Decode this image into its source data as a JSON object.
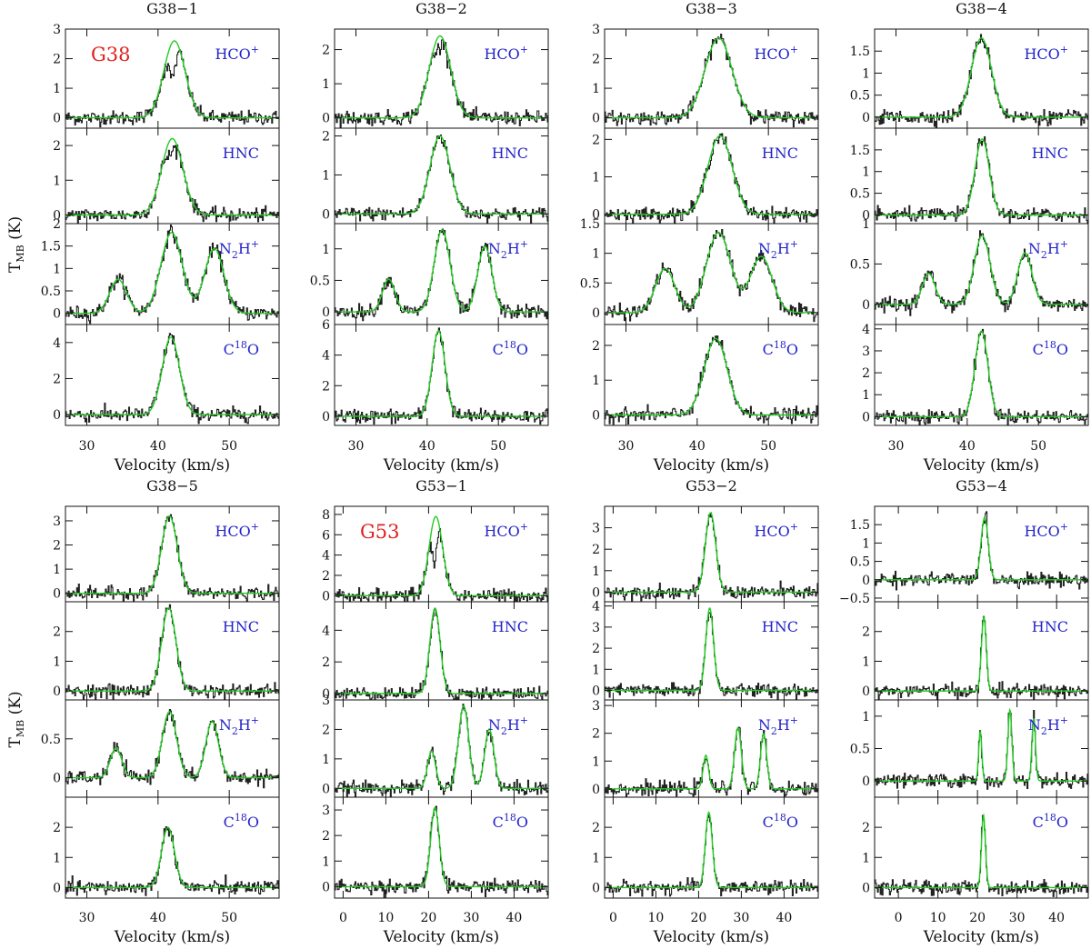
{
  "figure": {
    "y_axis_label": {
      "main": "T",
      "sub": "MB",
      "rest": " (K)"
    },
    "x_axis_label": "Velocity (km/s)",
    "molecules": [
      {
        "id": "HCO+",
        "main": "HCO",
        "sup": "+"
      },
      {
        "id": "HNC",
        "main": "HNC"
      },
      {
        "id": "N2H+",
        "main": "N",
        "sub": "2",
        "main2": "H",
        "sup": "+"
      },
      {
        "id": "C18O",
        "main": "C",
        "sup": "18",
        "main2": "O"
      }
    ],
    "colors": {
      "observed": "#222222",
      "fit": "#22cc22",
      "molecule_label": "#2323c8",
      "region_label": "#e02020"
    }
  },
  "chart_data": [
    {
      "type": "line",
      "title": "G38−1",
      "region_label": "G38",
      "xlim": [
        27,
        57
      ],
      "xticks": [
        "30",
        "40",
        "50"
      ],
      "stacks": [
        {
          "molecule": "HCO+",
          "ylim": [
            -0.35,
            3.0
          ],
          "yticks": [
            "0",
            "1",
            "2",
            "3"
          ],
          "peak": 2.6,
          "center": 42.3,
          "width": 1.5,
          "dip": 0.45,
          "offset": 0
        },
        {
          "molecule": "HNC",
          "ylim": [
            -0.25,
            2.5
          ],
          "yticks": [
            "0",
            "1",
            "2"
          ],
          "peak": 2.2,
          "center": 42.0,
          "width": 1.5,
          "dip": 0.2,
          "offset": 0
        },
        {
          "molecule": "N2H+",
          "ylim": [
            -0.25,
            2.0
          ],
          "yticks": [
            "0",
            "0.5",
            "1",
            "1.5",
            "2"
          ],
          "peak": 1.8,
          "center": 41.9,
          "width": 1.5,
          "hfs": [
            0.42,
            1.0,
            0.8
          ],
          "offset": 0
        },
        {
          "molecule": "C18O",
          "ylim": [
            -0.6,
            5.0
          ],
          "yticks": [
            "0",
            "2",
            "4"
          ],
          "peak": 4.3,
          "center": 41.8,
          "width": 1.2,
          "offset": 0
        }
      ]
    },
    {
      "type": "line",
      "title": "G38−2",
      "xlim": [
        27,
        57
      ],
      "xticks": [
        "30",
        "40",
        "50"
      ],
      "stacks": [
        {
          "molecule": "HCO+",
          "ylim": [
            -0.3,
            2.6
          ],
          "yticks": [
            "0",
            "1",
            "2"
          ],
          "peak": 2.4,
          "center": 41.8,
          "width": 1.5,
          "dip": 0.15,
          "offset": 0
        },
        {
          "molecule": "HNC",
          "ylim": [
            -0.25,
            2.2
          ],
          "yticks": [
            "0",
            "1",
            "2"
          ],
          "peak": 2.0,
          "center": 41.8,
          "width": 1.4,
          "offset": 0
        },
        {
          "molecule": "N2H+",
          "ylim": [
            -0.2,
            1.4
          ],
          "yticks": [
            "0",
            "0.5",
            "1"
          ],
          "peak": 1.3,
          "center": 42.1,
          "width": 1.1,
          "hfs": [
            0.4,
            1.0,
            0.8
          ],
          "offset": 0
        },
        {
          "molecule": "C18O",
          "ylim": [
            -0.6,
            6.0
          ],
          "yticks": [
            "0",
            "2",
            "4",
            "6"
          ],
          "peak": 5.6,
          "center": 41.6,
          "width": 0.9,
          "offset": 0
        }
      ]
    },
    {
      "type": "line",
      "title": "G38−3",
      "xlim": [
        27,
        57
      ],
      "xticks": [
        "30",
        "40",
        "50"
      ],
      "stacks": [
        {
          "molecule": "HCO+",
          "ylim": [
            -0.35,
            3.0
          ],
          "yticks": [
            "0",
            "1",
            "2",
            "3"
          ],
          "peak": 2.7,
          "center": 43.0,
          "width": 1.9,
          "offset": 0
        },
        {
          "molecule": "HNC",
          "ylim": [
            -0.25,
            2.3
          ],
          "yticks": [
            "0",
            "1",
            "2"
          ],
          "peak": 2.1,
          "center": 43.2,
          "width": 1.7,
          "offset": 0
        },
        {
          "molecule": "N2H+",
          "ylim": [
            -0.2,
            1.5
          ],
          "yticks": [
            "0",
            "0.5",
            "1",
            "1.5"
          ],
          "peak": 1.35,
          "center": 43.0,
          "width": 1.7,
          "hfs": [
            0.55,
            1.0,
            0.7
          ],
          "offset": 0
        },
        {
          "molecule": "C18O",
          "ylim": [
            -0.3,
            2.6
          ],
          "yticks": [
            "0",
            "1",
            "2"
          ],
          "peak": 2.2,
          "center": 42.6,
          "width": 1.6,
          "offset": 0
        }
      ]
    },
    {
      "type": "line",
      "title": "G38−4",
      "xlim": [
        27,
        57
      ],
      "xticks": [
        "30",
        "40",
        "50"
      ],
      "stacks": [
        {
          "molecule": "HCO+",
          "ylim": [
            -0.25,
            2.0
          ],
          "yticks": [
            "0",
            "0.5",
            "1",
            "1.5"
          ],
          "peak": 1.8,
          "center": 42.0,
          "width": 1.4,
          "offset": 0
        },
        {
          "molecule": "HNC",
          "ylim": [
            -0.2,
            2.0
          ],
          "yticks": [
            "0",
            "0.5",
            "1",
            "1.5"
          ],
          "peak": 1.75,
          "center": 42.1,
          "width": 1.0,
          "offset": 0
        },
        {
          "molecule": "N2H+",
          "ylim": [
            -0.25,
            1.0
          ],
          "yticks": [
            "0",
            "0.5",
            "1"
          ],
          "peak": 0.85,
          "center": 42.1,
          "width": 1.1,
          "hfs": [
            0.45,
            1.0,
            0.75
          ],
          "offset": 0
        },
        {
          "molecule": "C18O",
          "ylim": [
            -0.4,
            4.2
          ],
          "yticks": [
            "0",
            "1",
            "2",
            "3",
            "4"
          ],
          "peak": 3.9,
          "center": 42.0,
          "width": 0.9,
          "offset": 0
        }
      ]
    },
    {
      "type": "line",
      "title": "G38−5",
      "xlim": [
        27,
        57
      ],
      "xticks": [
        "30",
        "40",
        "50"
      ],
      "stacks": [
        {
          "molecule": "HCO+",
          "ylim": [
            -0.35,
            3.6
          ],
          "yticks": [
            "0",
            "1",
            "2",
            "3"
          ],
          "peak": 3.2,
          "center": 41.6,
          "width": 1.1,
          "offset": 0
        },
        {
          "molecule": "HNC",
          "ylim": [
            -0.3,
            3.0
          ],
          "yticks": [
            "0",
            "1",
            "2"
          ],
          "peak": 2.8,
          "center": 41.5,
          "width": 1.0,
          "offset": 0
        },
        {
          "molecule": "N2H+",
          "ylim": [
            -0.25,
            1.0
          ],
          "yticks": [
            "0",
            "0.5"
          ],
          "peak": 0.85,
          "center": 41.6,
          "width": 1.0,
          "hfs": [
            0.45,
            1.0,
            0.85
          ],
          "offset": 0
        },
        {
          "molecule": "C18O",
          "ylim": [
            -0.35,
            3.0
          ],
          "yticks": [
            "0",
            "1",
            "2"
          ],
          "peak": 2.0,
          "center": 41.4,
          "width": 0.9,
          "offset": 0
        }
      ]
    },
    {
      "type": "line",
      "title": "G53−1",
      "region_label": "G53",
      "xlim": [
        -2,
        48
      ],
      "xticks": [
        "0",
        "10",
        "20",
        "30",
        "40"
      ],
      "stacks": [
        {
          "molecule": "HCO+",
          "ylim": [
            -0.6,
            8.8
          ],
          "yticks": [
            "0",
            "2",
            "4",
            "6",
            "8"
          ],
          "peak": 7.8,
          "center": 21.7,
          "width": 1.6,
          "dip": 0.6,
          "offset": 0
        },
        {
          "molecule": "HNC",
          "ylim": [
            -0.4,
            5.8
          ],
          "yticks": [
            "0",
            "2",
            "4"
          ],
          "peak": 5.4,
          "center": 21.5,
          "width": 1.2,
          "offset": 0
        },
        {
          "molecule": "N2H+",
          "ylim": [
            -0.3,
            3.0
          ],
          "yticks": [
            "0",
            "1",
            "2",
            "3"
          ],
          "peak": 2.8,
          "center": 21.6,
          "width": 1.2,
          "hfs": [
            0.45,
            1.0,
            0.72
          ],
          "offset": 6.6
        },
        {
          "molecule": "C18O",
          "ylim": [
            -0.45,
            3.5
          ],
          "yticks": [
            "0",
            "1",
            "2",
            "3"
          ],
          "peak": 3.1,
          "center": 21.5,
          "width": 1.0,
          "offset": 0
        }
      ]
    },
    {
      "type": "line",
      "title": "G53−2",
      "xlim": [
        -2,
        48
      ],
      "xticks": [
        "0",
        "10",
        "20",
        "30",
        "40"
      ],
      "stacks": [
        {
          "molecule": "HCO+",
          "ylim": [
            -0.45,
            4.0
          ],
          "yticks": [
            "0",
            "1",
            "2",
            "3"
          ],
          "peak": 3.7,
          "center": 22.8,
          "width": 1.2,
          "offset": 0
        },
        {
          "molecule": "HNC",
          "ylim": [
            -0.45,
            4.2
          ],
          "yticks": [
            "0",
            "1",
            "2",
            "3",
            "4"
          ],
          "peak": 3.9,
          "center": 22.6,
          "width": 0.9,
          "offset": 0
        },
        {
          "molecule": "N2H+",
          "ylim": [
            -0.3,
            3.2
          ],
          "yticks": [
            "0",
            "1",
            "2",
            "3"
          ],
          "peak": 2.2,
          "center": 22.6,
          "width": 0.8,
          "hfs": [
            0.55,
            1.0,
            0.9
          ],
          "offset": 6.6
        },
        {
          "molecule": "C18O",
          "ylim": [
            -0.35,
            3.0
          ],
          "yticks": [
            "0",
            "1",
            "2"
          ],
          "peak": 2.5,
          "center": 22.4,
          "width": 0.8,
          "offset": 0
        }
      ]
    },
    {
      "type": "line",
      "title": "G53−4",
      "xlim": [
        -6,
        48
      ],
      "xticks": [
        "0",
        "10",
        "20",
        "30",
        "40"
      ],
      "stacks": [
        {
          "molecule": "HCO+",
          "ylim": [
            -0.6,
            2.0
          ],
          "yticks": [
            "−0.5",
            "0",
            "0.5",
            "1",
            "1.5"
          ],
          "peak": 1.7,
          "center": 21.8,
          "width": 0.9,
          "offset": 0
        },
        {
          "molecule": "HNC",
          "ylim": [
            -0.3,
            3.0
          ],
          "yticks": [
            "0",
            "1",
            "2"
          ],
          "peak": 2.5,
          "center": 21.6,
          "width": 0.6,
          "offset": 0
        },
        {
          "molecule": "N2H+",
          "ylim": [
            -0.25,
            1.25
          ],
          "yticks": [
            "0",
            "0.5",
            "1"
          ],
          "peak": 1.1,
          "center": 21.6,
          "width": 0.5,
          "hfs": [
            0.7,
            1.0,
            0.88
          ],
          "offset": 6.6
        },
        {
          "molecule": "C18O",
          "ylim": [
            -0.35,
            3.0
          ],
          "yticks": [
            "0",
            "1",
            "2"
          ],
          "peak": 2.4,
          "center": 21.5,
          "width": 0.5,
          "offset": 0
        }
      ]
    }
  ]
}
